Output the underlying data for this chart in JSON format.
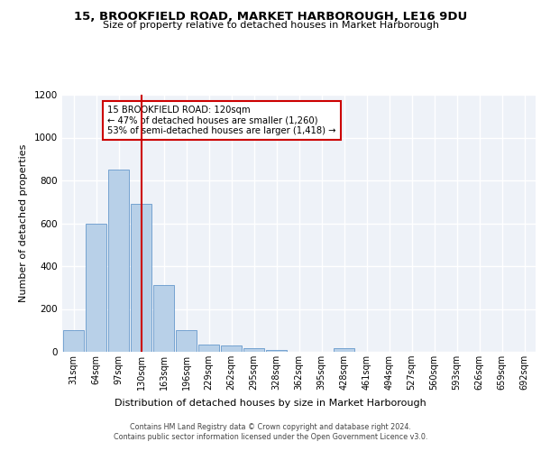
{
  "title": "15, BROOKFIELD ROAD, MARKET HARBOROUGH, LE16 9DU",
  "subtitle": "Size of property relative to detached houses in Market Harborough",
  "xlabel": "Distribution of detached houses by size in Market Harborough",
  "ylabel": "Number of detached properties",
  "bar_color": "#b8d0e8",
  "bar_edge_color": "#6699cc",
  "background_color": "#eef2f8",
  "grid_color": "#ffffff",
  "bins": [
    "31sqm",
    "64sqm",
    "97sqm",
    "130sqm",
    "163sqm",
    "196sqm",
    "229sqm",
    "262sqm",
    "295sqm",
    "328sqm",
    "362sqm",
    "395sqm",
    "428sqm",
    "461sqm",
    "494sqm",
    "527sqm",
    "560sqm",
    "593sqm",
    "626sqm",
    "659sqm",
    "692sqm"
  ],
  "values": [
    100,
    600,
    850,
    690,
    310,
    100,
    35,
    30,
    18,
    10,
    0,
    0,
    15,
    0,
    0,
    0,
    0,
    0,
    0,
    0,
    0
  ],
  "property_bin_index": 3,
  "annotation_text": "15 BROOKFIELD ROAD: 120sqm\n← 47% of detached houses are smaller (1,260)\n53% of semi-detached houses are larger (1,418) →",
  "vline_color": "#cc0000",
  "annotation_box_color": "#ffffff",
  "annotation_box_edge": "#cc0000",
  "footer_line1": "Contains HM Land Registry data © Crown copyright and database right 2024.",
  "footer_line2": "Contains public sector information licensed under the Open Government Licence v3.0.",
  "ylim": [
    0,
    1200
  ],
  "yticks": [
    0,
    200,
    400,
    600,
    800,
    1000,
    1200
  ],
  "title_fontsize": 9.5,
  "subtitle_fontsize": 8,
  "ylabel_fontsize": 8,
  "xlabel_fontsize": 8,
  "tick_fontsize": 7,
  "footer_fontsize": 5.8
}
